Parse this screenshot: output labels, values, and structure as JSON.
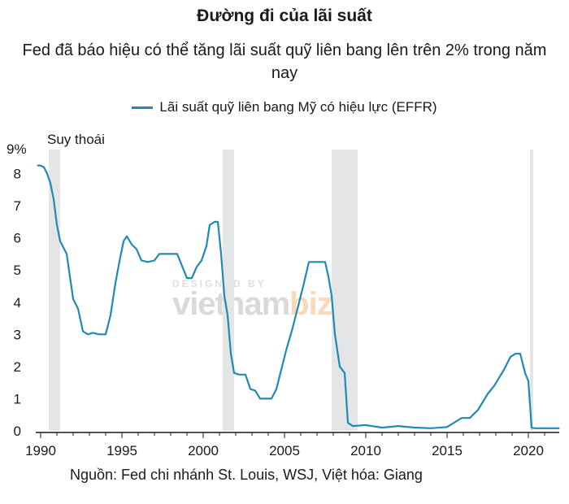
{
  "title": "Đường đi của lãi suất",
  "subtitle": "Fed đã báo hiệu có thể tăng lãi suất quỹ liên bang lên trên 2% trong năm nay",
  "source": "Nguồn: Fed chi nhánh St. Louis, WSJ, Việt hóa: Giang",
  "watermark": {
    "top": "DESIGNED BY",
    "brand_a": "vietnam",
    "brand_b": "biz"
  },
  "colors": {
    "line": "#1f8ab3",
    "recession": "#e3e5e7",
    "axis": "#1a1a1a"
  },
  "chart_data": {
    "type": "line",
    "ylabel_unit": "9%",
    "recession_label": "Suy thoái",
    "legend": "top-center",
    "grid": false,
    "xlim": [
      1989.7,
      2021.9
    ],
    "ylim": [
      0,
      9
    ],
    "x_ticks": [
      "1990",
      "1995",
      "2000",
      "2005",
      "2010",
      "2015",
      "2020"
    ],
    "y_ticks": [
      "0",
      "1",
      "2",
      "3",
      "4",
      "5",
      "6",
      "7",
      "8"
    ],
    "recessions": [
      [
        1990.5,
        1991.2
      ],
      [
        2001.2,
        2001.9
      ],
      [
        2007.9,
        2009.5
      ],
      [
        2020.1,
        2020.3
      ]
    ],
    "series": [
      {
        "name": "Lãi suất quỹ liên bang Mỹ có hiệu lực (EFFR)",
        "x": [
          1989.8,
          1990.0,
          1990.2,
          1990.4,
          1990.6,
          1990.8,
          1991.0,
          1991.2,
          1991.4,
          1991.6,
          1991.8,
          1992.0,
          1992.3,
          1992.6,
          1992.9,
          1993.2,
          1993.6,
          1994.0,
          1994.3,
          1994.6,
          1994.9,
          1995.1,
          1995.3,
          1995.6,
          1995.9,
          1996.2,
          1996.6,
          1997.0,
          1997.3,
          1997.6,
          1998.0,
          1998.4,
          1998.8,
          1999.0,
          1999.3,
          1999.6,
          1999.9,
          2000.2,
          2000.4,
          2000.7,
          2000.9,
          2001.1,
          2001.3,
          2001.5,
          2001.7,
          2001.9,
          2002.2,
          2002.6,
          2002.9,
          2003.2,
          2003.5,
          2003.9,
          2004.2,
          2004.5,
          2004.8,
          2005.1,
          2005.5,
          2005.9,
          2006.2,
          2006.5,
          2007.0,
          2007.5,
          2007.7,
          2007.9,
          2008.1,
          2008.4,
          2008.7,
          2008.9,
          2009.2,
          2010.0,
          2011.0,
          2012.0,
          2013.0,
          2014.0,
          2015.0,
          2015.9,
          2016.4,
          2016.9,
          2017.2,
          2017.5,
          2017.9,
          2018.2,
          2018.5,
          2018.9,
          2019.2,
          2019.5,
          2019.8,
          2020.0,
          2020.2,
          2020.4,
          2021.0,
          2021.6,
          2021.9
        ],
        "values": [
          8.25,
          8.25,
          8.2,
          8.0,
          7.7,
          7.2,
          6.4,
          5.9,
          5.7,
          5.5,
          4.8,
          4.1,
          3.8,
          3.1,
          3.0,
          3.05,
          3.0,
          3.0,
          3.6,
          4.6,
          5.4,
          5.9,
          6.05,
          5.8,
          5.65,
          5.3,
          5.25,
          5.3,
          5.5,
          5.5,
          5.5,
          5.5,
          5.0,
          4.75,
          4.75,
          5.1,
          5.3,
          5.75,
          6.4,
          6.5,
          6.5,
          5.5,
          4.2,
          3.6,
          2.4,
          1.8,
          1.75,
          1.75,
          1.3,
          1.25,
          1.0,
          1.0,
          1.0,
          1.3,
          1.9,
          2.5,
          3.2,
          4.0,
          4.6,
          5.25,
          5.25,
          5.25,
          4.8,
          4.2,
          3.0,
          2.0,
          1.8,
          0.25,
          0.15,
          0.18,
          0.1,
          0.15,
          0.1,
          0.08,
          0.12,
          0.4,
          0.4,
          0.65,
          0.9,
          1.15,
          1.4,
          1.65,
          1.9,
          2.3,
          2.4,
          2.4,
          1.8,
          1.55,
          0.1,
          0.08,
          0.08,
          0.08,
          0.08
        ]
      }
    ]
  }
}
